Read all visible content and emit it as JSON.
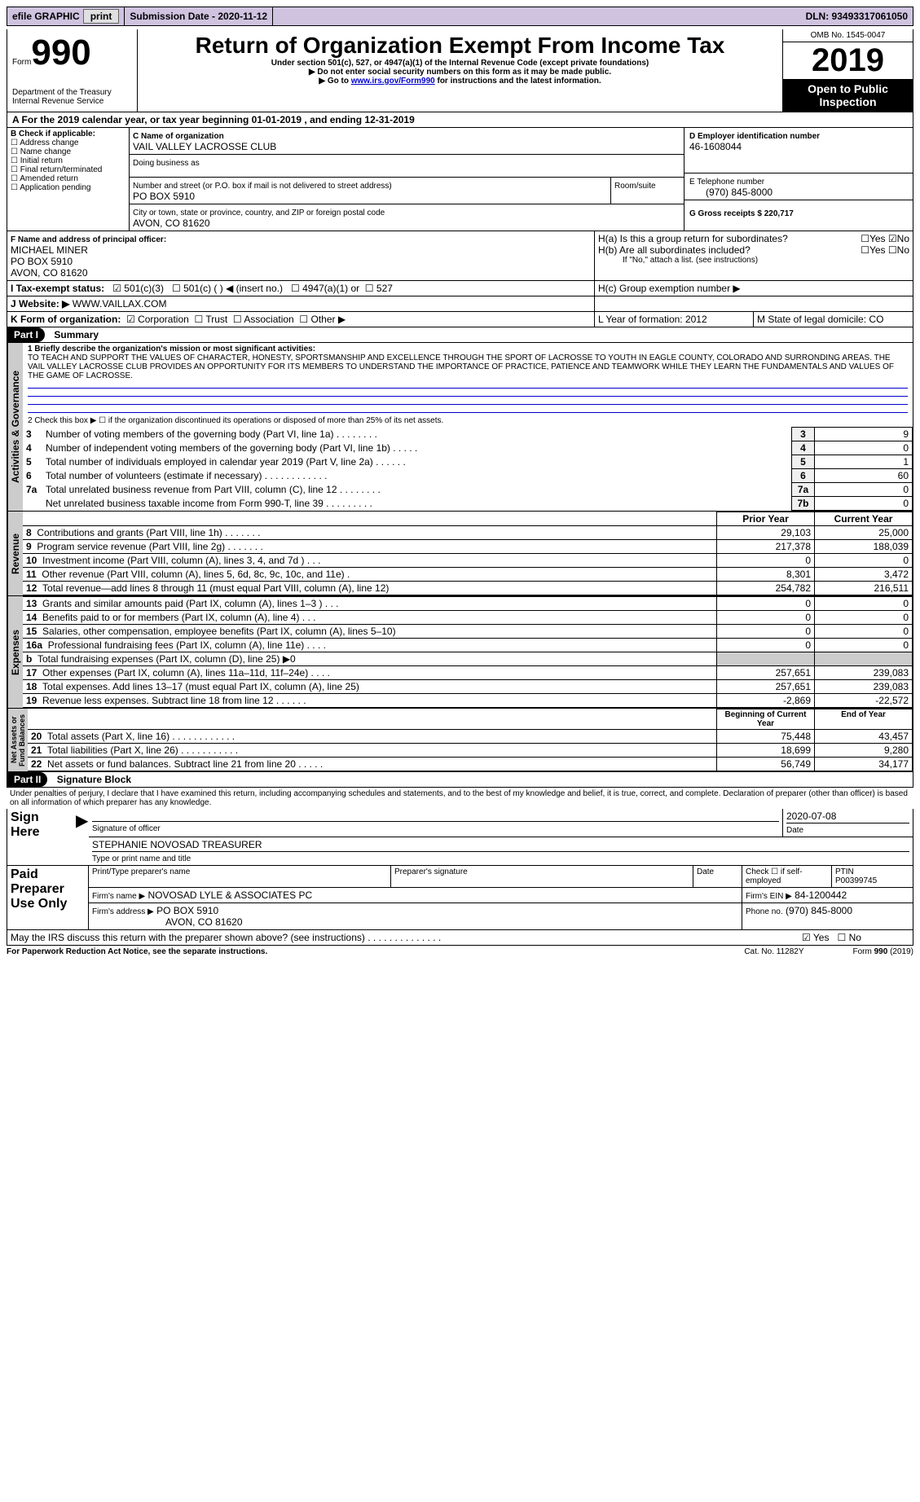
{
  "top": {
    "efile_label": "efile GRAPHIC",
    "print_btn": "print",
    "sub_date_label": "Submission Date - 2020-11-12",
    "dln_label": "DLN: 93493317061050"
  },
  "header": {
    "form_word": "Form",
    "form_num": "990",
    "dept": "Department of the Treasury\nInternal Revenue Service",
    "title": "Return of Organization Exempt From Income Tax",
    "sub1": "Under section 501(c), 527, or 4947(a)(1) of the Internal Revenue Code (except private foundations)",
    "sub2_arrow": "▶ Do not enter social security numbers on this form as it may be made public.",
    "sub3_prefix": "▶ Go to ",
    "sub3_link": "www.irs.gov/Form990",
    "sub3_suffix": " for instructions and the latest information.",
    "omb": "OMB No. 1545-0047",
    "year": "2019",
    "inspect": "Open to Public Inspection"
  },
  "A": {
    "label": "A For the 2019 calendar year, or tax year beginning 01-01-2019",
    "mid": " , and ending 12-31-2019"
  },
  "B": {
    "label": "B Check if applicable:",
    "opts": [
      "Address change",
      "Name change",
      "Initial return",
      "Final return/terminated",
      "Amended return",
      "Application pending"
    ]
  },
  "C": {
    "name_lbl": "C Name of organization",
    "name": "VAIL VALLEY LACROSSE CLUB",
    "dba_lbl": "Doing business as",
    "addr_lbl": "Number and street (or P.O. box if mail is not delivered to street address)",
    "room_lbl": "Room/suite",
    "addr": "PO BOX 5910",
    "city_lbl": "City or town, state or province, country, and ZIP or foreign postal code",
    "city": "AVON, CO  81620"
  },
  "D": {
    "lbl": "D Employer identification number",
    "val": "46-1608044"
  },
  "E": {
    "lbl": "E Telephone number",
    "val": "(970) 845-8000"
  },
  "G": {
    "lbl": "G Gross receipts $ 220,717"
  },
  "F": {
    "lbl": "F  Name and address of principal officer:",
    "name": "MICHAEL MINER",
    "addr1": "PO BOX 5910",
    "addr2": "AVON, CO  81620"
  },
  "H": {
    "a": "H(a)  Is this a group return for subordinates?",
    "b": "H(b)  Are all subordinates included?",
    "note": "If \"No,\" attach a list. (see instructions)",
    "c": "H(c)  Group exemption number ▶",
    "yes": "Yes",
    "no": "No"
  },
  "I": {
    "lbl": "I   Tax-exempt status:",
    "o1": "501(c)(3)",
    "o2": "501(c) (   ) ◀ (insert no.)",
    "o3": "4947(a)(1) or",
    "o4": "527"
  },
  "J": {
    "lbl": "J   Website: ▶",
    "val": "WWW.VAILLAX.COM"
  },
  "K": {
    "lbl": "K Form of organization:",
    "o1": "Corporation",
    "o2": "Trust",
    "o3": "Association",
    "o4": "Other ▶"
  },
  "L": {
    "lbl": "L Year of formation: 2012"
  },
  "M": {
    "lbl": "M State of legal domicile: CO"
  },
  "part1": {
    "hdr": "Part I",
    "title": "Summary",
    "mission_lbl": "1  Briefly describe the organization's mission or most significant activities:",
    "mission": "TO TEACH AND SUPPORT THE VALUES OF CHARACTER, HONESTY, SPORTSMANSHIP AND EXCELLENCE THROUGH THE SPORT OF LACROSSE TO YOUTH IN EAGLE COUNTY, COLORADO AND SURRONDING AREAS. THE VAIL VALLEY LACROSSE CLUB PROVIDES AN OPPORTUNITY FOR ITS MEMBERS TO UNDERSTAND THE IMPORTANCE OF PRACTICE, PATIENCE AND TEAMWORK WHILE THEY LEARN THE FUNDAMENTALS AND VALUES OF THE GAME OF LACROSSE.",
    "l2": "2   Check this box ▶ ☐  if the organization discontinued its operations or disposed of more than 25% of its net assets.",
    "rows_ag": [
      {
        "n": "3",
        "t": "Number of voting members of the governing body (Part VI, line 1a)  .   .   .   .   .   .   .   .",
        "k": "3",
        "v": "9"
      },
      {
        "n": "4",
        "t": "Number of independent voting members of the governing body (Part VI, line 1b)  .   .   .   .   .",
        "k": "4",
        "v": "0"
      },
      {
        "n": "5",
        "t": "Total number of individuals employed in calendar year 2019 (Part V, line 2a)  .   .   .   .   .   .",
        "k": "5",
        "v": "1"
      },
      {
        "n": "6",
        "t": "Total number of volunteers (estimate if necessary)  .   .   .   .   .   .   .   .   .   .   .   .",
        "k": "6",
        "v": "60"
      },
      {
        "n": "7a",
        "t": "Total unrelated business revenue from Part VIII, column (C), line 12  .   .   .   .   .   .   .   .",
        "k": "7a",
        "v": "0"
      },
      {
        "n": "",
        "t": "Net unrelated business taxable income from Form 990-T, line 39  .   .   .   .   .   .   .   .   .",
        "k": "7b",
        "v": "0"
      }
    ],
    "prior_lbl": "Prior Year",
    "curr_lbl": "Current Year",
    "rev_rows": [
      {
        "n": "8",
        "t": "Contributions and grants (Part VIII, line 1h)  .   .   .   .   .   .   .",
        "p": "29,103",
        "c": "25,000"
      },
      {
        "n": "9",
        "t": "Program service revenue (Part VIII, line 2g)  .   .   .   .   .   .   .",
        "p": "217,378",
        "c": "188,039"
      },
      {
        "n": "10",
        "t": "Investment income (Part VIII, column (A), lines 3, 4, and 7d )  .   .   .",
        "p": "0",
        "c": "0"
      },
      {
        "n": "11",
        "t": "Other revenue (Part VIII, column (A), lines 5, 6d, 8c, 9c, 10c, and 11e)  .",
        "p": "8,301",
        "c": "3,472"
      },
      {
        "n": "12",
        "t": "Total revenue—add lines 8 through 11 (must equal Part VIII, column (A), line 12)",
        "p": "254,782",
        "c": "216,511"
      }
    ],
    "exp_rows": [
      {
        "n": "13",
        "t": "Grants and similar amounts paid (Part IX, column (A), lines 1–3 )  .   .   .",
        "p": "0",
        "c": "0"
      },
      {
        "n": "14",
        "t": "Benefits paid to or for members (Part IX, column (A), line 4)  .   .   .",
        "p": "0",
        "c": "0"
      },
      {
        "n": "15",
        "t": "Salaries, other compensation, employee benefits (Part IX, column (A), lines 5–10)",
        "p": "0",
        "c": "0"
      },
      {
        "n": "16a",
        "t": "Professional fundraising fees (Part IX, column (A), line 11e)  .   .   .   .",
        "p": "0",
        "c": "0"
      },
      {
        "n": "b",
        "t": "Total fundraising expenses (Part IX, column (D), line 25) ▶0",
        "p": "",
        "c": ""
      },
      {
        "n": "17",
        "t": "Other expenses (Part IX, column (A), lines 11a–11d, 11f–24e)  .   .   .   .",
        "p": "257,651",
        "c": "239,083"
      },
      {
        "n": "18",
        "t": "Total expenses. Add lines 13–17 (must equal Part IX, column (A), line 25)",
        "p": "257,651",
        "c": "239,083"
      },
      {
        "n": "19",
        "t": "Revenue less expenses. Subtract line 18 from line 12  .   .   .   .   .   .",
        "p": "-2,869",
        "c": "-22,572"
      }
    ],
    "boy_lbl": "Beginning of Current Year",
    "eoy_lbl": "End of Year",
    "na_rows": [
      {
        "n": "20",
        "t": "Total assets (Part X, line 16)  .   .   .   .   .   .   .   .   .   .   .   .",
        "p": "75,448",
        "c": "43,457"
      },
      {
        "n": "21",
        "t": "Total liabilities (Part X, line 26)  .   .   .   .   .   .   .   .   .   .   .",
        "p": "18,699",
        "c": "9,280"
      },
      {
        "n": "22",
        "t": "Net assets or fund balances. Subtract line 21 from line 20  .   .   .   .   .",
        "p": "56,749",
        "c": "34,177"
      }
    ]
  },
  "part2": {
    "hdr": "Part II",
    "title": "Signature Block",
    "decl": "Under penalties of perjury, I declare that I have examined this return, including accompanying schedules and statements, and to the best of my knowledge and belief, it is true, correct, and complete. Declaration of preparer (other than officer) is based on all information of which preparer has any knowledge.",
    "sign_here": "Sign Here",
    "sig_date": "2020-07-08",
    "sig_lbl": "Signature of officer",
    "date_lbl": "Date",
    "officer": "STEPHANIE NOVOSAD  TREASURER",
    "officer_lbl": "Type or print name and title",
    "paid": "Paid Preparer Use Only",
    "p_name_lbl": "Print/Type preparer's name",
    "p_sig_lbl": "Preparer's signature",
    "p_date_lbl": "Date",
    "p_self": "Check ☐ if self-employed",
    "ptin_lbl": "PTIN",
    "ptin": "P00399745",
    "firm_name_lbl": "Firm's name      ▶",
    "firm_name": "NOVOSAD LYLE & ASSOCIATES PC",
    "firm_ein_lbl": "Firm's EIN ▶",
    "firm_ein": "84-1200442",
    "firm_addr_lbl": "Firm's address ▶",
    "firm_addr": "PO BOX 5910",
    "firm_city": "AVON, CO  81620",
    "phone_lbl": "Phone no.",
    "phone": "(970) 845-8000"
  },
  "footer": {
    "q": "May the IRS discuss this return with the preparer shown above? (see instructions)  .   .   .   .   .   .   .   .   .   .   .   .   .   .",
    "yes": "Yes",
    "no": "No",
    "pra": "For Paperwork Reduction Act Notice, see the separate instructions.",
    "cat": "Cat. No. 11282Y",
    "form": "Form 990 (2019)"
  },
  "glyph": {
    "checked": "☑",
    "unchecked": "☐",
    "checked_green": "✅"
  }
}
